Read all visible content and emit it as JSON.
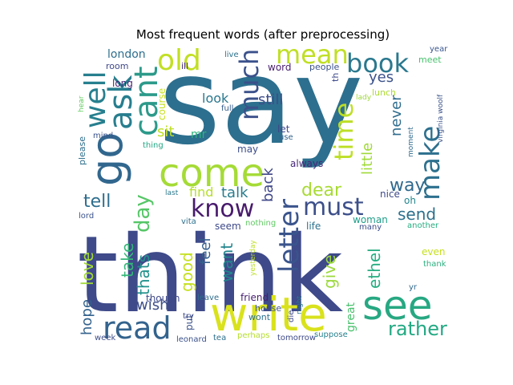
{
  "chart_data": {
    "type": "wordcloud",
    "title": "Most frequent words (after preprocessing)",
    "words": [
      {
        "text": "say",
        "color": "#2d6f8e"
      },
      {
        "text": "think",
        "color": "#3e4a89"
      },
      {
        "text": "write",
        "color": "#d9e21c"
      },
      {
        "text": "see",
        "color": "#27a882"
      },
      {
        "text": "come",
        "color": "#a5db36"
      },
      {
        "text": "go",
        "color": "#31678e"
      },
      {
        "text": "ask",
        "color": "#277e8e"
      },
      {
        "text": "well",
        "color": "#277f8e"
      },
      {
        "text": "cant",
        "color": "#2c9a8a"
      },
      {
        "text": "old",
        "color": "#c2df23"
      },
      {
        "text": "much",
        "color": "#3b518b"
      },
      {
        "text": "mean",
        "color": "#c0df25"
      },
      {
        "text": "book",
        "color": "#2a788e"
      },
      {
        "text": "time",
        "color": "#bddf26"
      },
      {
        "text": "make",
        "color": "#2d708e"
      },
      {
        "text": "letter",
        "color": "#3a548c"
      },
      {
        "text": "know",
        "color": "#481a6c"
      },
      {
        "text": "must",
        "color": "#3c4f8a"
      },
      {
        "text": "read",
        "color": "#33638d"
      },
      {
        "text": "day",
        "color": "#56c667"
      },
      {
        "text": "tell",
        "color": "#2e6e8e"
      },
      {
        "text": "still",
        "color": "#3d4d8a"
      },
      {
        "text": "yes",
        "color": "#3b528b"
      },
      {
        "text": "never",
        "color": "#2f6c8e"
      },
      {
        "text": "back",
        "color": "#3f4788"
      },
      {
        "text": "talk",
        "color": "#287c8e"
      },
      {
        "text": "dear",
        "color": "#a8db34"
      },
      {
        "text": "way",
        "color": "#30698e"
      },
      {
        "text": "send",
        "color": "#2d718e"
      },
      {
        "text": "little",
        "color": "#a0da39"
      },
      {
        "text": "sit",
        "color": "#bfdf25"
      },
      {
        "text": "look",
        "color": "#2a778e"
      },
      {
        "text": "find",
        "color": "#b5de2b"
      },
      {
        "text": "love",
        "color": "#a2da37"
      },
      {
        "text": "good",
        "color": "#c5e021"
      },
      {
        "text": "take",
        "color": "#35b779"
      },
      {
        "text": "thats",
        "color": "#21918c"
      },
      {
        "text": "want",
        "color": "#24878e"
      },
      {
        "text": "feel",
        "color": "#35608d"
      },
      {
        "text": "give",
        "color": "#9bd93c"
      },
      {
        "text": "ethel",
        "color": "#27ad81"
      },
      {
        "text": "rather",
        "color": "#23a983"
      },
      {
        "text": "wish",
        "color": "#3d4e8a"
      },
      {
        "text": "hope",
        "color": "#33628d"
      },
      {
        "text": "london",
        "color": "#2e6f8e"
      },
      {
        "text": "great",
        "color": "#4ac16d"
      },
      {
        "text": "lady",
        "color": "#9dd93b"
      },
      {
        "text": "virginia woolf",
        "color": "#3b528b"
      },
      {
        "text": "room",
        "color": "#3f4889"
      },
      {
        "text": "long",
        "color": "#482475"
      },
      {
        "text": "ill",
        "color": "#472f7d"
      },
      {
        "text": "live",
        "color": "#2c728e"
      },
      {
        "text": "word",
        "color": "#481d6f"
      },
      {
        "text": "people",
        "color": "#3b528b"
      },
      {
        "text": "year",
        "color": "#39568c"
      },
      {
        "text": "meet",
        "color": "#48c16e"
      },
      {
        "text": "lunch",
        "color": "#addc30"
      },
      {
        "text": "course",
        "color": "#c8e020"
      },
      {
        "text": "mr",
        "color": "#2fb47c"
      },
      {
        "text": "thing",
        "color": "#22a884"
      },
      {
        "text": "full",
        "color": "#365d8d"
      },
      {
        "text": "let",
        "color": "#3f4788"
      },
      {
        "text": "use",
        "color": "#33638d"
      },
      {
        "text": "always",
        "color": "#482878"
      },
      {
        "text": "may",
        "color": "#3d4e8a"
      },
      {
        "text": "last",
        "color": "#2a788e"
      },
      {
        "text": "oh",
        "color": "#24868e"
      },
      {
        "text": "nice",
        "color": "#3e4a89"
      },
      {
        "text": "woman",
        "color": "#1f9e89"
      },
      {
        "text": "life",
        "color": "#2c728e"
      },
      {
        "text": "many",
        "color": "#3d4d8a"
      },
      {
        "text": "another",
        "color": "#26ad81"
      },
      {
        "text": "even",
        "color": "#c6e021"
      },
      {
        "text": "thank",
        "color": "#2ab07f"
      },
      {
        "text": "yr",
        "color": "#31688e"
      },
      {
        "text": "moment",
        "color": "#2f6b8e"
      },
      {
        "text": "please",
        "color": "#2e6f8e"
      },
      {
        "text": "hear",
        "color": "#62cb5f"
      },
      {
        "text": "mind",
        "color": "#3b528b"
      },
      {
        "text": "lord",
        "color": "#3b528b"
      },
      {
        "text": "vita",
        "color": "#2d718e"
      },
      {
        "text": "seem",
        "color": "#3e4989"
      },
      {
        "text": "nothing",
        "color": "#5ec962"
      },
      {
        "text": "yesterday",
        "color": "#bddf26"
      },
      {
        "text": "leave",
        "color": "#2f6c8e"
      },
      {
        "text": "friend",
        "color": "#482071"
      },
      {
        "text": "night",
        "color": "#2a788e"
      },
      {
        "text": "house",
        "color": "#3b528b"
      },
      {
        "text": "wont",
        "color": "#2c728e"
      },
      {
        "text": "die",
        "color": "#3e4a89"
      },
      {
        "text": "though",
        "color": "#3e4a89"
      },
      {
        "text": "put",
        "color": "#3b528b"
      },
      {
        "text": "try",
        "color": "#3e4a89"
      },
      {
        "text": "week",
        "color": "#3d4e8a"
      },
      {
        "text": "leonard",
        "color": "#3b528b"
      },
      {
        "text": "tea",
        "color": "#2d708e"
      },
      {
        "text": "perhaps",
        "color": "#b5de2b"
      },
      {
        "text": "tomorrow",
        "color": "#3e4a89"
      },
      {
        "text": "suppose",
        "color": "#26818e"
      },
      {
        "text": "th",
        "color": "#3e4a89"
      }
    ]
  }
}
